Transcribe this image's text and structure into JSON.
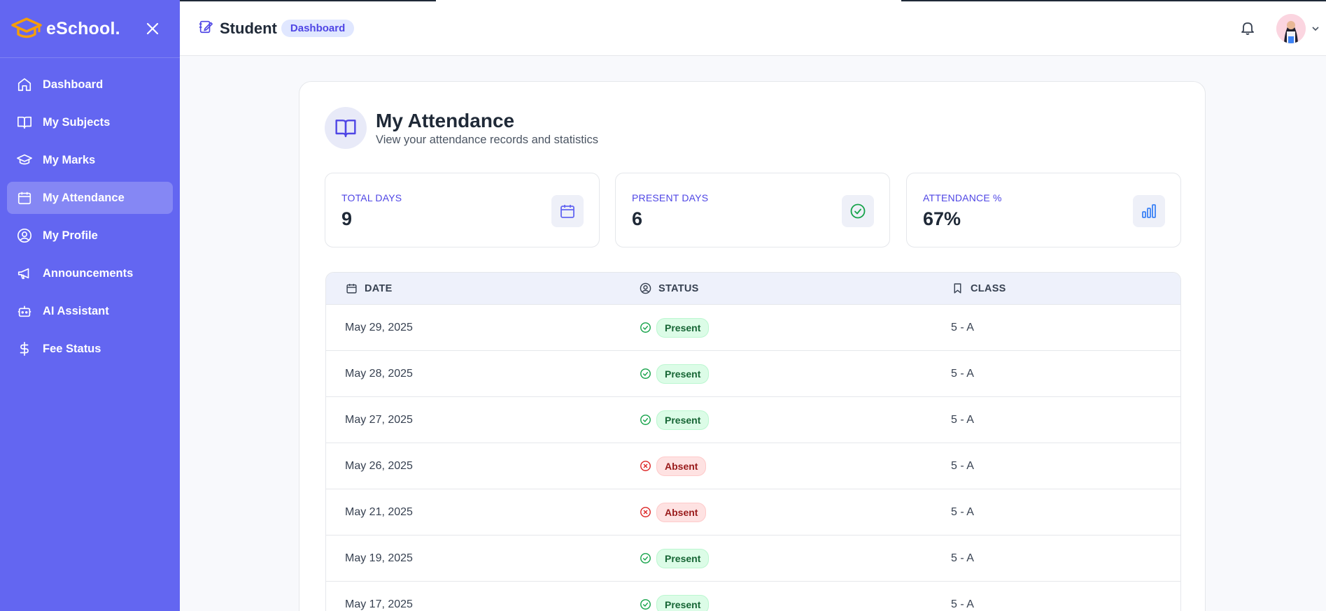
{
  "sidebar": {
    "brand": "eSchool.",
    "items": [
      {
        "label": "Dashboard",
        "icon": "home-icon"
      },
      {
        "label": "My Subjects",
        "icon": "book-icon"
      },
      {
        "label": "My Marks",
        "icon": "graduation-cap-icon"
      },
      {
        "label": "My Attendance",
        "icon": "calendar-icon",
        "active": true
      },
      {
        "label": "My Profile",
        "icon": "user-circle-icon"
      },
      {
        "label": "Announcements",
        "icon": "megaphone-icon"
      },
      {
        "label": "AI Assistant",
        "icon": "bot-icon"
      },
      {
        "label": "Fee Status",
        "icon": "dollar-icon"
      }
    ]
  },
  "header": {
    "title": "Student",
    "badge": "Dashboard"
  },
  "page": {
    "title": "My Attendance",
    "subtitle": "View your attendance records and statistics"
  },
  "stats": [
    {
      "label": "TOTAL DAYS",
      "value": "9",
      "icon": "calendar-icon"
    },
    {
      "label": "PRESENT DAYS",
      "value": "6",
      "icon": "check-circle-icon"
    },
    {
      "label": "ATTENDANCE %",
      "value": "67%",
      "icon": "bar-chart-icon"
    }
  ],
  "table": {
    "headers": [
      "DATE",
      "STATUS",
      "CLASS"
    ],
    "rows": [
      {
        "date": "May 29, 2025",
        "status": "Present",
        "class": "5 - A"
      },
      {
        "date": "May 28, 2025",
        "status": "Present",
        "class": "5 - A"
      },
      {
        "date": "May 27, 2025",
        "status": "Present",
        "class": "5 - A"
      },
      {
        "date": "May 26, 2025",
        "status": "Absent",
        "class": "5 - A"
      },
      {
        "date": "May 21, 2025",
        "status": "Absent",
        "class": "5 - A"
      },
      {
        "date": "May 19, 2025",
        "status": "Present",
        "class": "5 - A"
      },
      {
        "date": "May 17, 2025",
        "status": "Present",
        "class": "5 - A"
      }
    ]
  },
  "colors": {
    "sidebar": "#6366f1",
    "accent": "#4f46e5",
    "present": "#16a34a",
    "absent": "#dc2626"
  }
}
